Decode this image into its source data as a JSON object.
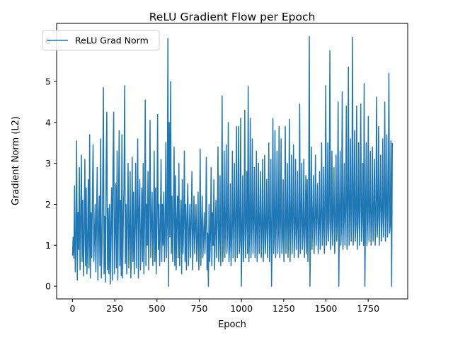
{
  "chart_data": {
    "type": "line",
    "title": "ReLU Gradient Flow per Epoch",
    "xlabel": "Epoch",
    "ylabel": "Gradient Norm (L2)",
    "xlim": [
      -94,
      1984
    ],
    "ylim": [
      -0.31,
      6.42
    ],
    "xticks": [
      0,
      250,
      500,
      750,
      1000,
      1250,
      1500,
      1750
    ],
    "yticks": [
      0,
      1,
      2,
      3,
      4,
      5,
      6
    ],
    "grid": false,
    "legend_position": "top-left",
    "series": [
      {
        "name": "ReLU Grad Norm",
        "color": "#1f77b4",
        "x_start": 0,
        "x_step": 1,
        "values": [
          0.75,
          1.2,
          0.68,
          2.45,
          0.35,
          1.1,
          3.55,
          0.15,
          1.8,
          0.9,
          2.9,
          0.4,
          1.5,
          3.2,
          0.6,
          2.1,
          0.25,
          1.3,
          3.1,
          0.5,
          2.4,
          0.3,
          1.1,
          2.6,
          0.45,
          3.7,
          0.2,
          1.8,
          0.7,
          2.3,
          3.45,
          0.6,
          1.2,
          2.0,
          0.35,
          1.6,
          2.9,
          0.15,
          1.4,
          2.2,
          0.5,
          3.6,
          0.2,
          1.0,
          2.4,
          4.85,
          0.3,
          1.7,
          0.1,
          2.8,
          4.25,
          0.4,
          1.9,
          0.3,
          2.0,
          0.05,
          1.5,
          2.4,
          0.15,
          2.9,
          4.25,
          0.3,
          1.3,
          2.5,
          0.45,
          3.3,
          0.15,
          1.9,
          3.8,
          0.5,
          2.1,
          0.25,
          3.7,
          0.2,
          1.6,
          2.4,
          4.9,
          0.55,
          2.0,
          0.3,
          1.6,
          3.0,
          0.45,
          1.2,
          2.8,
          0.2,
          1.0,
          3.15,
          0.6,
          2.3,
          0.3,
          1.5,
          3.0,
          0.45,
          1.7,
          3.6,
          0.2,
          1.8,
          2.6,
          0.4,
          1.2,
          2.4,
          0.6,
          3.0,
          0.3,
          1.6,
          4.55,
          0.5,
          2.0,
          1.0,
          2.8,
          0.4,
          1.9,
          4.05,
          0.7,
          1.5,
          2.3,
          0.5,
          1.2,
          3.3,
          0.6,
          2.4,
          0.3,
          1.7,
          4.2,
          0.9,
          2.0,
          0.5,
          1.4,
          3.1,
          0.6,
          2.0,
          1.0,
          2.3,
          0.6,
          1.3,
          3.5,
          0.7,
          1.5,
          6.05,
          0.0,
          4.0,
          1.2,
          5.0,
          0.8,
          2.2,
          0.6,
          1.7,
          3.4,
          0.5,
          2.7,
          0.4,
          1.6,
          2.2,
          0.7,
          3.0,
          0.5,
          1.4,
          2.1,
          0.3,
          2.6,
          0.8,
          1.5,
          3.3,
          0.6,
          2.0,
          0.4,
          1.7,
          2.5,
          0.5,
          1.3,
          2.0,
          0.7,
          1.6,
          2.8,
          0.4,
          1.3,
          2.2,
          0.8,
          1.5,
          2.0,
          0.6,
          1.1,
          2.3,
          0.4,
          1.0,
          3.35,
          0.5,
          1.4,
          2.2,
          0.7,
          1.2,
          1.8,
          0.8,
          1.5,
          3.15,
          0.4,
          1.3,
          0.0,
          2.0,
          0.6,
          1.2,
          2.9,
          0.5,
          1.8,
          1.0,
          2.6,
          0.4,
          1.3,
          2.1,
          0.7,
          1.6,
          3.4,
          0.6,
          1.1,
          2.7,
          0.5,
          1.4,
          4.65,
          0.6,
          1.2,
          3.3,
          0.7,
          1.5,
          3.45,
          0.8,
          1.3,
          4.0,
          0.6,
          1.0,
          2.5,
          0.5,
          1.2,
          3.3,
          0.7,
          1.6,
          3.0,
          0.6,
          1.4,
          3.9,
          0.7,
          1.5,
          3.9,
          0.8,
          1.1,
          4.1,
          0.0,
          1.2,
          2.7,
          0.6,
          1.3,
          4.3,
          0.7,
          1.5,
          2.8,
          0.8,
          4.88,
          0.6,
          1.3,
          4.1,
          0.7,
          1.4,
          3.6,
          0.8,
          1.6,
          2.9,
          0.7,
          1.2,
          3.3,
          0.6,
          1.4,
          3.0,
          0.8,
          1.5,
          2.8,
          0.7,
          1.3,
          3.1,
          0.6,
          1.2,
          3.2,
          0.8,
          1.4,
          2.6,
          0.7,
          1.5,
          3.5,
          0.6,
          1.3,
          3.1,
          0.0,
          1.4,
          4.1,
          0.8,
          1.2,
          3.8,
          0.7,
          1.6,
          3.3,
          0.8,
          1.3,
          3.9,
          0.7,
          1.5,
          3.6,
          0.8,
          1.2,
          2.6,
          0.6,
          1.4,
          3.9,
          0.8,
          1.5,
          3.0,
          0.7,
          1.3,
          4.08,
          0.6,
          1.5,
          3.2,
          0.8,
          1.6,
          3.45,
          0.7,
          1.3,
          3.1,
          0.9,
          1.4,
          2.8,
          0.7,
          1.2,
          4.45,
          0.8,
          1.6,
          3.0,
          0.9,
          1.3,
          3.1,
          0.7,
          1.4,
          2.7,
          0.8,
          2.6,
          0.6,
          1.5,
          6.1,
          0.0,
          1.3,
          3.4,
          0.9,
          1.6,
          2.7,
          0.8,
          1.5,
          3.2,
          1.0,
          1.7,
          2.5,
          0.8,
          1.4,
          2.8,
          0.9,
          1.6,
          3.5,
          1.0,
          1.4,
          2.9,
          0.8,
          1.7,
          4.9,
          1.0,
          1.5,
          3.5,
          1.1,
          1.6,
          5.75,
          0.9,
          1.4,
          3.3,
          1.0,
          1.8,
          2.9,
          0.8,
          1.5,
          3.2,
          1.1,
          1.6,
          4.5,
          0.0,
          1.7,
          3.3,
          1.0,
          1.5,
          4.75,
          0.9,
          1.6,
          3.0,
          1.0,
          1.8,
          4.4,
          0.9,
          1.5,
          5.35,
          1.0,
          1.7,
          3.6,
          1.1,
          1.8,
          6.08,
          1.0,
          1.6,
          3.8,
          1.1,
          1.5,
          4.4,
          0.9,
          1.7,
          3.5,
          1.0,
          1.9,
          4.45,
          1.1,
          1.6,
          3.0,
          1.0,
          4.95,
          0.0,
          1.8,
          3.5,
          1.0,
          1.6,
          4.15,
          1.1,
          1.7,
          3.3,
          1.0,
          1.5,
          3.4,
          1.1,
          1.8,
          3.1,
          1.0,
          1.6,
          4.62,
          1.2,
          1.7,
          3.9,
          1.0,
          1.9,
          3.2,
          1.1,
          1.6,
          3.6,
          1.2,
          1.8,
          4.5,
          1.1,
          1.7,
          3.7,
          1.2,
          1.9,
          5.2,
          1.3,
          1.5,
          3.55,
          0.0,
          3.5
        ]
      }
    ]
  }
}
